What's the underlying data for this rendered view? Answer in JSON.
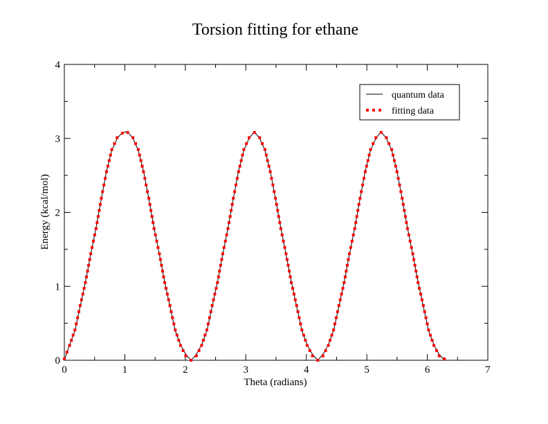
{
  "chart_data": {
    "type": "line",
    "title": "Torsion fitting for ethane",
    "xlabel": "Theta (radians)",
    "ylabel": "Energy (kcal/mol)",
    "xlim": [
      0,
      7
    ],
    "ylim": [
      0,
      4
    ],
    "x_ticks": [
      "0",
      "1",
      "2",
      "3",
      "4",
      "5",
      "6",
      "7"
    ],
    "y_ticks": [
      "0",
      "1",
      "2",
      "3",
      "4"
    ],
    "grid": false,
    "legend_position": "top-right",
    "series": [
      {
        "name": "quantum data",
        "style": "solid line",
        "color": "#000000",
        "x": [
          0.0,
          0.087,
          0.175,
          0.262,
          0.349,
          0.436,
          0.524,
          0.611,
          0.698,
          0.785,
          0.873,
          0.96,
          1.047,
          1.134,
          1.222,
          1.309,
          1.396,
          1.484,
          1.571,
          1.658,
          1.745,
          1.833,
          1.92,
          2.007,
          2.094,
          2.182,
          2.269,
          2.356,
          2.443,
          2.531,
          2.618,
          2.705,
          2.793,
          2.88,
          2.967,
          3.054,
          3.142,
          3.229,
          3.316,
          3.403,
          3.491,
          3.578,
          3.665,
          3.752,
          3.84,
          3.927,
          4.014,
          4.102,
          4.189,
          4.276,
          4.363,
          4.451,
          4.538,
          4.625,
          4.712,
          4.8,
          4.887,
          4.974,
          5.061,
          5.149,
          5.236,
          5.323,
          5.411,
          5.498,
          5.585,
          5.672,
          5.76,
          5.847,
          5.934,
          6.021,
          6.109,
          6.196,
          6.283
        ],
        "y": [
          0.0,
          0.21,
          0.4,
          0.73,
          1.06,
          1.43,
          1.79,
          2.18,
          2.56,
          2.84,
          3.0,
          3.08,
          3.09,
          3.0,
          2.84,
          2.56,
          2.18,
          1.79,
          1.43,
          1.06,
          0.73,
          0.4,
          0.21,
          0.08,
          0.0,
          0.08,
          0.21,
          0.4,
          0.73,
          1.06,
          1.43,
          1.79,
          2.18,
          2.56,
          2.84,
          3.0,
          3.09,
          3.0,
          2.84,
          2.56,
          2.18,
          1.79,
          1.43,
          1.06,
          0.73,
          0.4,
          0.21,
          0.08,
          0.0,
          0.08,
          0.21,
          0.4,
          0.73,
          1.06,
          1.43,
          1.79,
          2.18,
          2.56,
          2.84,
          3.0,
          3.09,
          3.0,
          2.84,
          2.56,
          2.18,
          1.79,
          1.43,
          1.06,
          0.73,
          0.4,
          0.21,
          0.08,
          0.0
        ]
      },
      {
        "name": "fitting data",
        "style": "dotted",
        "color": "#ff0000",
        "x": [
          0.0,
          0.087,
          0.175,
          0.262,
          0.349,
          0.436,
          0.524,
          0.611,
          0.698,
          0.785,
          0.873,
          0.96,
          1.047,
          1.134,
          1.222,
          1.309,
          1.396,
          1.484,
          1.571,
          1.658,
          1.745,
          1.833,
          1.92,
          2.007,
          2.094,
          2.182,
          2.269,
          2.356,
          2.443,
          2.531,
          2.618,
          2.705,
          2.793,
          2.88,
          2.967,
          3.054,
          3.142,
          3.229,
          3.316,
          3.403,
          3.491,
          3.578,
          3.665,
          3.752,
          3.84,
          3.927,
          4.014,
          4.102,
          4.189,
          4.276,
          4.363,
          4.451,
          4.538,
          4.625,
          4.712,
          4.8,
          4.887,
          4.974,
          5.061,
          5.149,
          5.236,
          5.323,
          5.411,
          5.498,
          5.585,
          5.672,
          5.76,
          5.847,
          5.934,
          6.021,
          6.109,
          6.196,
          6.283
        ],
        "y": [
          0.02,
          0.2,
          0.41,
          0.74,
          1.05,
          1.44,
          1.78,
          2.19,
          2.55,
          2.85,
          3.01,
          3.07,
          3.08,
          3.01,
          2.85,
          2.55,
          2.19,
          1.78,
          1.44,
          1.05,
          0.74,
          0.41,
          0.2,
          0.06,
          0.0,
          0.06,
          0.2,
          0.41,
          0.74,
          1.05,
          1.44,
          1.78,
          2.19,
          2.55,
          2.85,
          3.01,
          3.08,
          3.01,
          2.85,
          2.55,
          2.19,
          1.78,
          1.44,
          1.05,
          0.74,
          0.41,
          0.2,
          0.06,
          0.0,
          0.06,
          0.2,
          0.41,
          0.74,
          1.05,
          1.44,
          1.78,
          2.19,
          2.55,
          2.85,
          3.01,
          3.08,
          3.01,
          2.85,
          2.55,
          2.19,
          1.78,
          1.44,
          1.05,
          0.74,
          0.41,
          0.2,
          0.06,
          0.02
        ]
      }
    ]
  }
}
